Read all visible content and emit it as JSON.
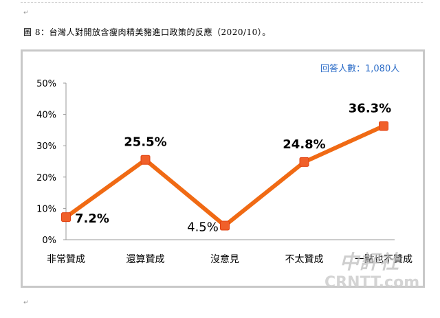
{
  "caption": "圖 8：台灣人對開放含瘦肉精美豬進口政策的反應（2020/10）。",
  "respondents_label": "回答人數：1,080人",
  "watermark": {
    "cn": "中評社",
    "en": "CRNTT.com"
  },
  "paragraph_mark": "↵",
  "colors": {
    "series": "#f06a14",
    "marker": "#f0602a",
    "grid": "#9a9a9a",
    "note": "#2a6bc7"
  },
  "chart_data": {
    "type": "line",
    "categories": [
      "非常贊成",
      "還算贊成",
      "沒意見",
      "不太贊成",
      "一點也不贊成"
    ],
    "series": [
      {
        "values": [
          7.2,
          25.5,
          4.5,
          24.8,
          36.3
        ]
      }
    ],
    "data_labels": [
      "7.2%",
      "25.5%",
      "4.5%",
      "24.8%",
      "36.3%"
    ],
    "y_ticks": [
      "0%",
      "10%",
      "20%",
      "30%",
      "40%",
      "50%"
    ],
    "ylim": [
      0,
      50
    ],
    "grid": false,
    "legend": "none"
  }
}
